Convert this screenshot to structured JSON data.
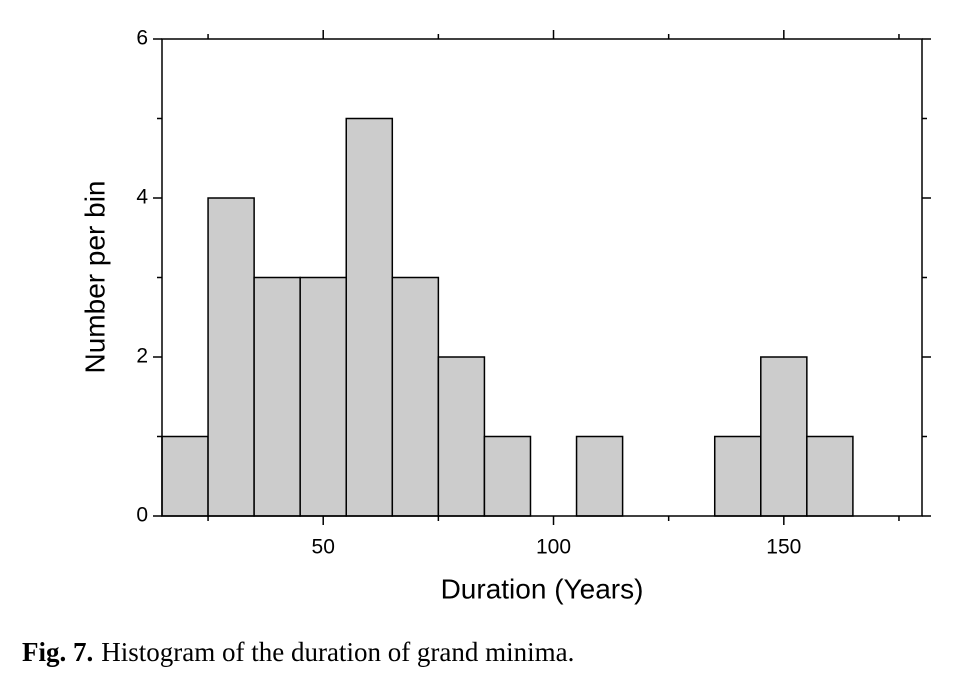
{
  "chart_data": {
    "type": "histogram",
    "bins": [
      15,
      25,
      35,
      45,
      55,
      65,
      75,
      85,
      95,
      105,
      115,
      125,
      135,
      145,
      155,
      165
    ],
    "values": [
      1,
      4,
      3,
      3,
      5,
      3,
      2,
      1,
      0,
      1,
      0,
      0,
      1,
      2,
      1
    ],
    "color": "#cccccc",
    "xlabel": "Duration (Years)",
    "ylabel": "Number per bin",
    "xlim": [
      15,
      180
    ],
    "ylim": [
      0,
      6
    ],
    "xticks": [
      50,
      100,
      150
    ],
    "yticks": [
      0,
      2,
      4,
      6
    ],
    "xminorticks": [
      25,
      75,
      125,
      175
    ],
    "yminorticks": [
      1,
      3,
      5
    ],
    "mirror_ticks": true
  },
  "caption": {
    "label": "Fig. 7.",
    "text": "Histogram of the duration of grand minima."
  }
}
